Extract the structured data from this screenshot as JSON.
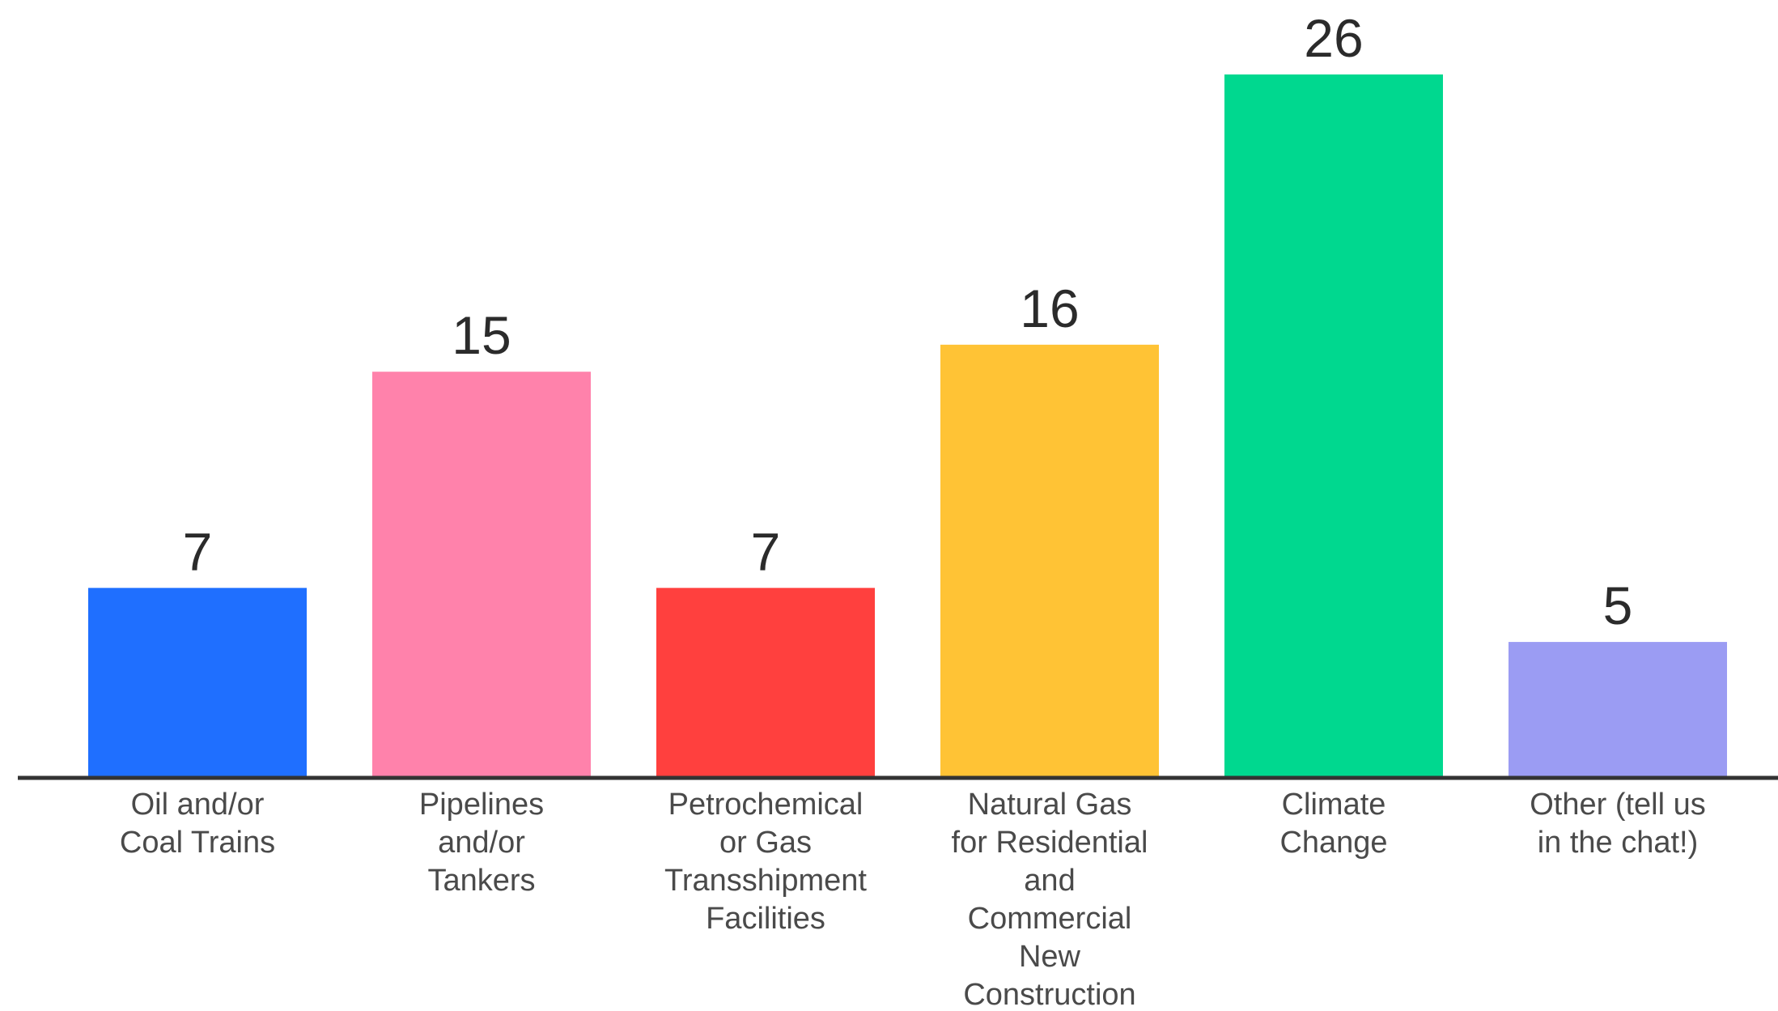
{
  "chart_data": {
    "type": "bar",
    "categories": [
      [
        "Oil and/or",
        "Coal Trains"
      ],
      [
        "Pipelines",
        "and/or",
        "Tankers"
      ],
      [
        "Petrochemical",
        "or Gas",
        "Transshipment",
        "Facilities"
      ],
      [
        "Natural Gas",
        "for Residential",
        "and",
        "Commercial",
        "New",
        "Construction"
      ],
      [
        "Climate",
        "Change"
      ],
      [
        "Other (tell us",
        "in the chat!)"
      ]
    ],
    "values": [
      7,
      15,
      7,
      16,
      26,
      5
    ],
    "colors": [
      "#1f6fff",
      "#ff82ab",
      "#ff403e",
      "#ffc335",
      "#00d88f",
      "#9b9cf3"
    ],
    "axis_color": "#333333",
    "title": "",
    "xlabel": "",
    "ylabel": "",
    "ylim": [
      0,
      26
    ],
    "grid": false,
    "legend": "none"
  }
}
